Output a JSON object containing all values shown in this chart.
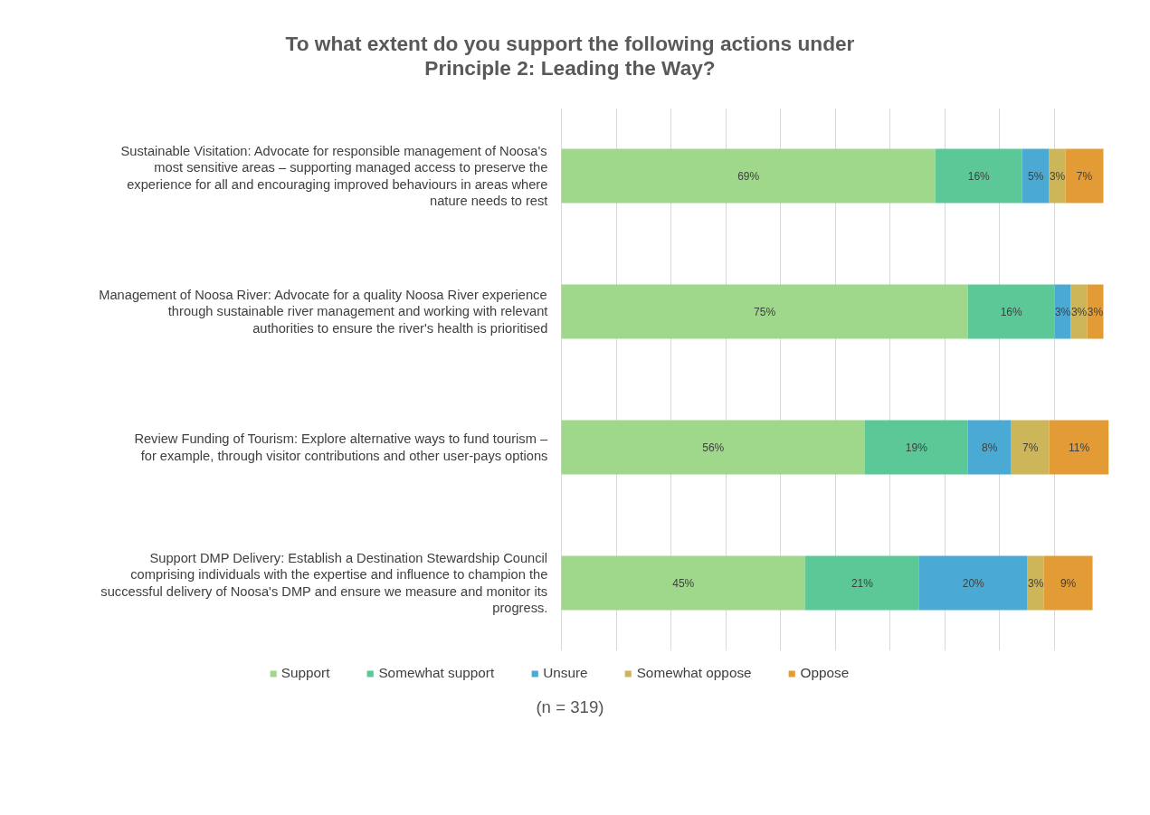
{
  "chart_data": {
    "type": "bar",
    "orientation": "horizontal",
    "stacked": true,
    "title": "To what extent do you support the following actions under Principle 2: Leading the Way?",
    "categories": [
      "Sustainable Visitation: Advocate for responsible management of Noosa's most sensitive areas – supporting managed access to preserve the experience for all and encouraging improved behaviours in areas where nature needs to rest",
      "Management of Noosa River: Advocate for a quality Noosa River experience through sustainable river management and working with relevant authorities to ensure the river's health is prioritised",
      "Review Funding of Tourism: Explore alternative ways to fund tourism – for example, through visitor contributions and other user-pays options",
      "Support DMP Delivery: Establish a Destination Stewardship Council comprising individuals with the expertise and influence to champion the successful delivery of Noosa's DMP and ensure we measure and monitor its progress."
    ],
    "series": [
      {
        "name": "Support",
        "color": "#9fd78b",
        "values": [
          69,
          75,
          56,
          45
        ],
        "value_labels": [
          "69%",
          "75%",
          "56%",
          "45%"
        ]
      },
      {
        "name": "Somewhat support",
        "color": "#5cc898",
        "values": [
          16,
          16,
          19,
          21
        ],
        "value_labels": [
          "16%",
          "16%",
          "19%",
          "21%"
        ]
      },
      {
        "name": "Unsure",
        "color": "#4aaad4",
        "values": [
          5,
          3,
          8,
          20
        ],
        "value_labels": [
          "5%",
          "3%",
          "8%",
          "20%"
        ]
      },
      {
        "name": "Somewhat oppose",
        "color": "#cdb55a",
        "values": [
          3,
          3,
          7,
          3
        ],
        "value_labels": [
          "3%",
          "3%",
          "7%",
          "3%"
        ]
      },
      {
        "name": "Oppose",
        "color": "#e39b35",
        "values": [
          7,
          3,
          11,
          9
        ],
        "value_labels": [
          "7%",
          "3%",
          "11%",
          "9%"
        ]
      }
    ],
    "grid": "x",
    "tick_labels": "y",
    "legend": "bottom",
    "annotations": [
      "(n = 319)"
    ]
  }
}
